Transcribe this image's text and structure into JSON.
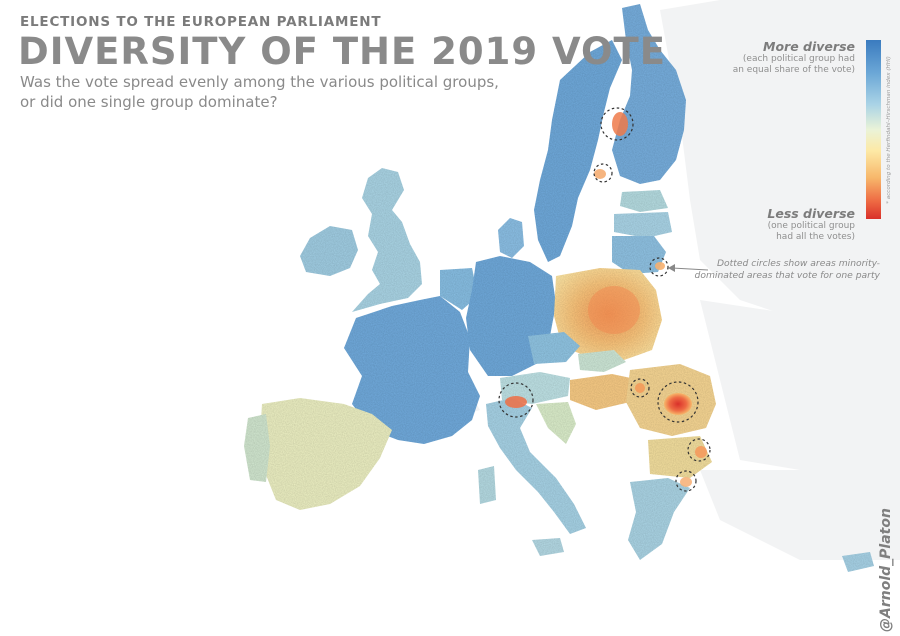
{
  "header": {
    "kicker": "ELECTIONS TO THE EUROPEAN PARLIAMENT",
    "title": "DIVERSITY OF THE 2019 VOTE",
    "subtitle_line1": "Was the vote spread evenly among the various political groups,",
    "subtitle_line2": "or did one single group dominate?"
  },
  "legend": {
    "top_label": "More diverse",
    "top_sub1": "(each political group had",
    "top_sub2": "an equal share of the vote)",
    "bottom_label": "Less diverse",
    "bottom_sub1": "(one political group",
    "bottom_sub2": "had all the votes)",
    "index_note": "* according to the Herfindahl–Hirschman index (HHI)",
    "colors": [
      "#3a7bbf",
      "#6aa6d6",
      "#aad3e6",
      "#eaf3d8",
      "#fde9a5",
      "#f7b76b",
      "#ee6a43",
      "#d9302a"
    ]
  },
  "annotation": {
    "line1": "Dotted circles show areas minority-",
    "line2": "dominated areas that vote for one party"
  },
  "credit": "@Arnold_Platon",
  "map": {
    "background": "#ffffff",
    "non_eu_land": "#f2f3f4",
    "circled_areas": [
      "northern Sweden",
      "Åland",
      "Lithuania east",
      "South Tyrol",
      "Transylvania west",
      "Székely Land",
      "Bulgaria east",
      "Bulgaria south"
    ]
  }
}
